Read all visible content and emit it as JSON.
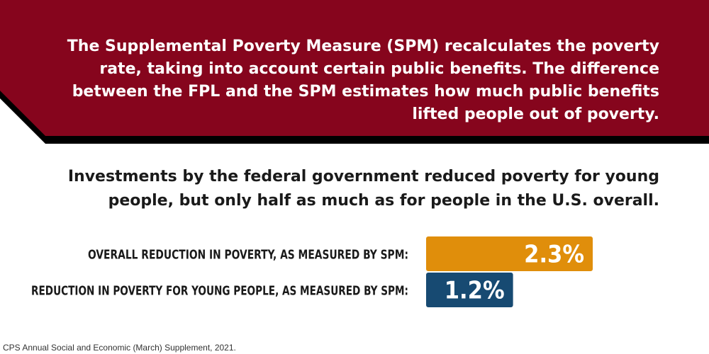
{
  "banner": {
    "text": "The Supplemental Poverty Measure (SPM) recalculates the poverty rate, taking into account certain public benefits. The difference between the FPL and the SPM estimates how much public benefits lifted people out of poverty.",
    "background_color": "#86051d",
    "shadow_color": "#000000"
  },
  "headline": "Investments by the federal government reduced poverty for young people, but only half as much as for people in the U.S. overall.",
  "chart_data": {
    "type": "bar",
    "orientation": "horizontal",
    "categories": [
      "OVERALL REDUCTION IN POVERTY, AS MEASURED BY SPM:",
      "REDUCTION IN POVERTY FOR YOUNG PEOPLE, AS MEASURED BY SPM:"
    ],
    "values": [
      2.3,
      1.2
    ],
    "value_labels": [
      "2.3%",
      "1.2%"
    ],
    "colors": [
      "#e08e0b",
      "#174a72"
    ],
    "unit": "%",
    "xlim": [
      0,
      2.3
    ],
    "grid": false,
    "legend": "none"
  },
  "source": "CPS Annual Social and Economic (March) Supplement, 2021."
}
